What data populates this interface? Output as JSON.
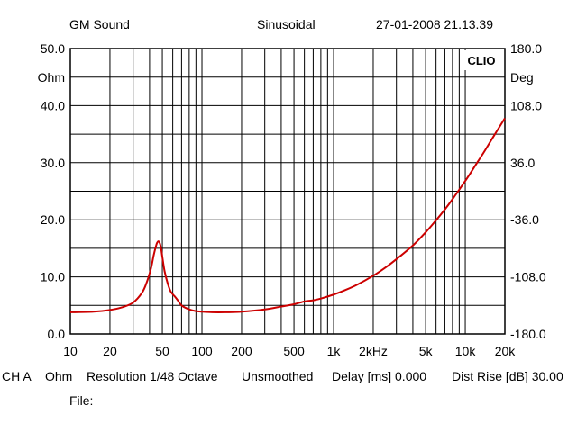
{
  "header": {
    "source": "GM Sound",
    "signal": "Sinusoidal",
    "datetime": "27-01-2008 21.13.39"
  },
  "footer": {
    "channel": "CH A",
    "unit": "Ohm",
    "resolution": "Resolution 1/48 Octave",
    "smoothing": "Unsmoothed",
    "delay": "Delay [ms] 0.000",
    "dist_rise": "Dist Rise [dB] 30.00",
    "file_label": "File:"
  },
  "chart_data": {
    "type": "line",
    "brand": "CLIO",
    "x_scale": "log",
    "xlim": [
      10,
      20000
    ],
    "x_ticks": [
      {
        "value": 10,
        "label": "10"
      },
      {
        "value": 20,
        "label": "20"
      },
      {
        "value": 50,
        "label": "50"
      },
      {
        "value": 100,
        "label": "100"
      },
      {
        "value": 200,
        "label": "200"
      },
      {
        "value": 500,
        "label": "500"
      },
      {
        "value": 1000,
        "label": "1k"
      },
      {
        "value": 2000,
        "label": "2kHz"
      },
      {
        "value": 5000,
        "label": "5k"
      },
      {
        "value": 10000,
        "label": "10k"
      },
      {
        "value": 20000,
        "label": "20k"
      }
    ],
    "y_left": {
      "unit": "Ohm",
      "ylim": [
        0,
        50
      ],
      "ticks": [
        "0.0",
        "10.0",
        "20.0",
        "30.0",
        "40.0",
        "50.0"
      ]
    },
    "y_right": {
      "unit": "Deg",
      "ylim": [
        -180,
        180
      ],
      "ticks": [
        "-180.0",
        "-108.0",
        "-36.0",
        "36.0",
        "108.0",
        "180.0"
      ]
    },
    "grid": true,
    "series": [
      {
        "color": "#cc0000",
        "axis": "left",
        "x": [
          10,
          15,
          20,
          25,
          30,
          35,
          38,
          41,
          43,
          45,
          46,
          47,
          48,
          49,
          50,
          52,
          55,
          58,
          62,
          66,
          70,
          80,
          90,
          100,
          120,
          150,
          200,
          300,
          400,
          500,
          600,
          700,
          800,
          1000,
          1200,
          1500,
          2000,
          2500,
          3000,
          4000,
          5000,
          6000,
          7000,
          8000,
          10000,
          12000,
          14000,
          16000,
          18000,
          20000
        ],
        "y": [
          3.8,
          3.9,
          4.2,
          4.7,
          5.5,
          7.2,
          9.0,
          11.5,
          13.8,
          15.6,
          16.1,
          16.2,
          15.8,
          14.9,
          13.5,
          11.0,
          8.8,
          7.4,
          6.6,
          5.8,
          5.0,
          4.3,
          4.0,
          3.9,
          3.8,
          3.8,
          3.9,
          4.3,
          4.8,
          5.2,
          5.7,
          5.9,
          6.2,
          6.9,
          7.6,
          8.6,
          10.2,
          11.7,
          13.1,
          15.5,
          17.8,
          19.9,
          21.8,
          23.6,
          26.8,
          29.6,
          32.0,
          34.2,
          36.1,
          37.8
        ]
      }
    ]
  }
}
